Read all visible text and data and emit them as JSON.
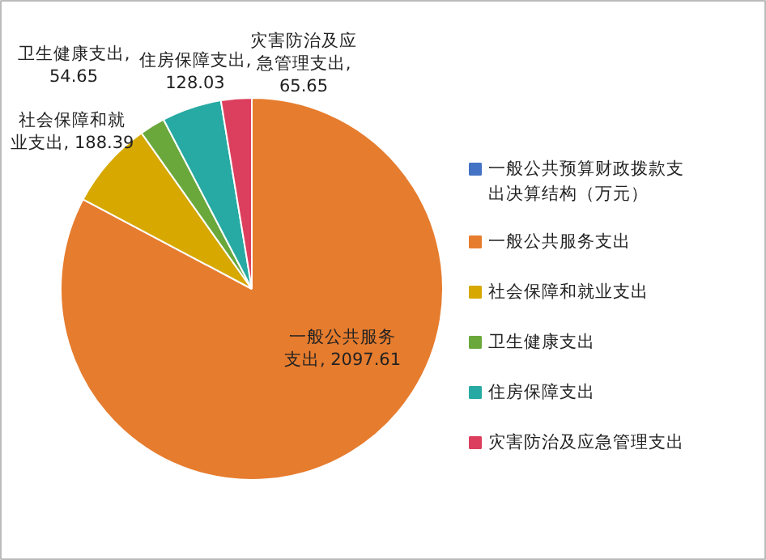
{
  "chart_data": {
    "type": "pie",
    "categories": [
      "一般公共预算财政拨款支出决算结构（万元）",
      "一般公共服务支出",
      "社会保障和就业支出",
      "卫生健康支出",
      "住房保障支出",
      "灾害防治及应急管理支出"
    ],
    "values": [
      0,
      2097.61,
      188.39,
      54.65,
      128.03,
      65.65
    ],
    "colors": [
      "#4472c4",
      "#e67c2e",
      "#d6a800",
      "#6aa83c",
      "#27aaa3",
      "#dc3f5d"
    ],
    "value_labels": [
      null,
      "一般公共服务支出, 2097.61",
      "社会保障和就业支出, 188.39",
      "卫生健康支出, 54.65",
      "住房保障支出, 128.03",
      "灾害防治及应急管理支出, 65.65"
    ],
    "legend": "right"
  }
}
